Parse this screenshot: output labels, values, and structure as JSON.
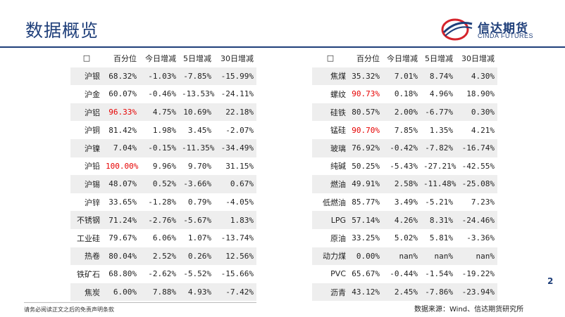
{
  "header": {
    "title": "数据概览"
  },
  "logo": {
    "cn": "信达期货",
    "en": "CINDA FUTURES"
  },
  "colors": {
    "brand": "#1f3f7a",
    "highlight": "#e60000",
    "row_shade": "#eeeeee",
    "logo_red": "#d5232b"
  },
  "left_table": {
    "headers": [
      "□",
      "百分位",
      "今日增减",
      "5日增减",
      "30日增减"
    ],
    "rows": [
      {
        "name": "沪银",
        "pct": "68.32%",
        "d1": "-1.03%",
        "d5": "-7.85%",
        "d30": "-15.99%",
        "hl": false
      },
      {
        "name": "沪金",
        "pct": "60.07%",
        "d1": "-0.46%",
        "d5": "-13.53%",
        "d30": "-24.11%",
        "hl": false
      },
      {
        "name": "沪铝",
        "pct": "96.33%",
        "d1": "4.75%",
        "d5": "10.69%",
        "d30": "22.18%",
        "hl": true
      },
      {
        "name": "沪铜",
        "pct": "81.42%",
        "d1": "1.98%",
        "d5": "3.45%",
        "d30": "-2.07%",
        "hl": false
      },
      {
        "name": "沪镍",
        "pct": "7.04%",
        "d1": "-0.15%",
        "d5": "-11.35%",
        "d30": "-34.49%",
        "hl": false
      },
      {
        "name": "沪铅",
        "pct": "100.00%",
        "d1": "9.96%",
        "d5": "9.70%",
        "d30": "31.15%",
        "hl": true
      },
      {
        "name": "沪锡",
        "pct": "48.07%",
        "d1": "0.52%",
        "d5": "-3.66%",
        "d30": "0.67%",
        "hl": false
      },
      {
        "name": "沪锌",
        "pct": "33.65%",
        "d1": "-1.28%",
        "d5": "0.79%",
        "d30": "-4.05%",
        "hl": false
      },
      {
        "name": "不锈钢",
        "pct": "71.24%",
        "d1": "-2.76%",
        "d5": "-5.67%",
        "d30": "1.83%",
        "hl": false
      },
      {
        "name": "工业硅",
        "pct": "79.67%",
        "d1": "6.06%",
        "d5": "1.07%",
        "d30": "-13.74%",
        "hl": false
      },
      {
        "name": "热卷",
        "pct": "80.04%",
        "d1": "2.52%",
        "d5": "0.26%",
        "d30": "12.56%",
        "hl": false
      },
      {
        "name": "铁矿石",
        "pct": "68.80%",
        "d1": "-2.62%",
        "d5": "-5.52%",
        "d30": "-15.66%",
        "hl": false
      },
      {
        "name": "焦炭",
        "pct": "6.00%",
        "d1": "7.88%",
        "d5": "4.93%",
        "d30": "-7.42%",
        "hl": false
      }
    ]
  },
  "right_table": {
    "headers": [
      "□",
      "百分位",
      "今日增减",
      "5日增减",
      "30日增减"
    ],
    "rows": [
      {
        "name": "焦煤",
        "pct": "35.32%",
        "d1": "7.01%",
        "d5": "8.74%",
        "d30": "4.30%",
        "hl": false
      },
      {
        "name": "螺纹",
        "pct": "90.73%",
        "d1": "0.18%",
        "d5": "4.96%",
        "d30": "18.90%",
        "hl": true
      },
      {
        "name": "硅铁",
        "pct": "80.57%",
        "d1": "2.00%",
        "d5": "-6.77%",
        "d30": "0.30%",
        "hl": false
      },
      {
        "name": "锰硅",
        "pct": "90.70%",
        "d1": "7.85%",
        "d5": "1.35%",
        "d30": "4.21%",
        "hl": true
      },
      {
        "name": "玻璃",
        "pct": "76.92%",
        "d1": "-0.42%",
        "d5": "-7.82%",
        "d30": "-16.74%",
        "hl": false
      },
      {
        "name": "纯碱",
        "pct": "50.25%",
        "d1": "-5.43%",
        "d5": "-27.21%",
        "d30": "-42.55%",
        "hl": false
      },
      {
        "name": "燃油",
        "pct": "49.91%",
        "d1": "2.58%",
        "d5": "-11.48%",
        "d30": "-25.08%",
        "hl": false
      },
      {
        "name": "低燃油",
        "pct": "85.77%",
        "d1": "3.49%",
        "d5": "-5.21%",
        "d30": "7.23%",
        "hl": false
      },
      {
        "name": "LPG",
        "pct": "57.14%",
        "d1": "4.26%",
        "d5": "8.31%",
        "d30": "-24.46%",
        "hl": false
      },
      {
        "name": "原油",
        "pct": "33.25%",
        "d1": "5.02%",
        "d5": "5.81%",
        "d30": "-3.36%",
        "hl": false
      },
      {
        "name": "动力煤",
        "pct": "0.00%",
        "d1": "nan%",
        "d5": "nan%",
        "d30": "nan%",
        "hl": false
      },
      {
        "name": "PVC",
        "pct": "65.67%",
        "d1": "-0.44%",
        "d5": "-1.54%",
        "d30": "-19.22%",
        "hl": false
      },
      {
        "name": "沥青",
        "pct": "43.12%",
        "d1": "2.45%",
        "d5": "-7.86%",
        "d30": "-23.94%",
        "hl": false
      }
    ]
  },
  "footer": {
    "disclaimer": "请务必阅读正文之后的免责声明条款",
    "source": "数据来源：Wind、信达期货研究所",
    "page": "2"
  }
}
